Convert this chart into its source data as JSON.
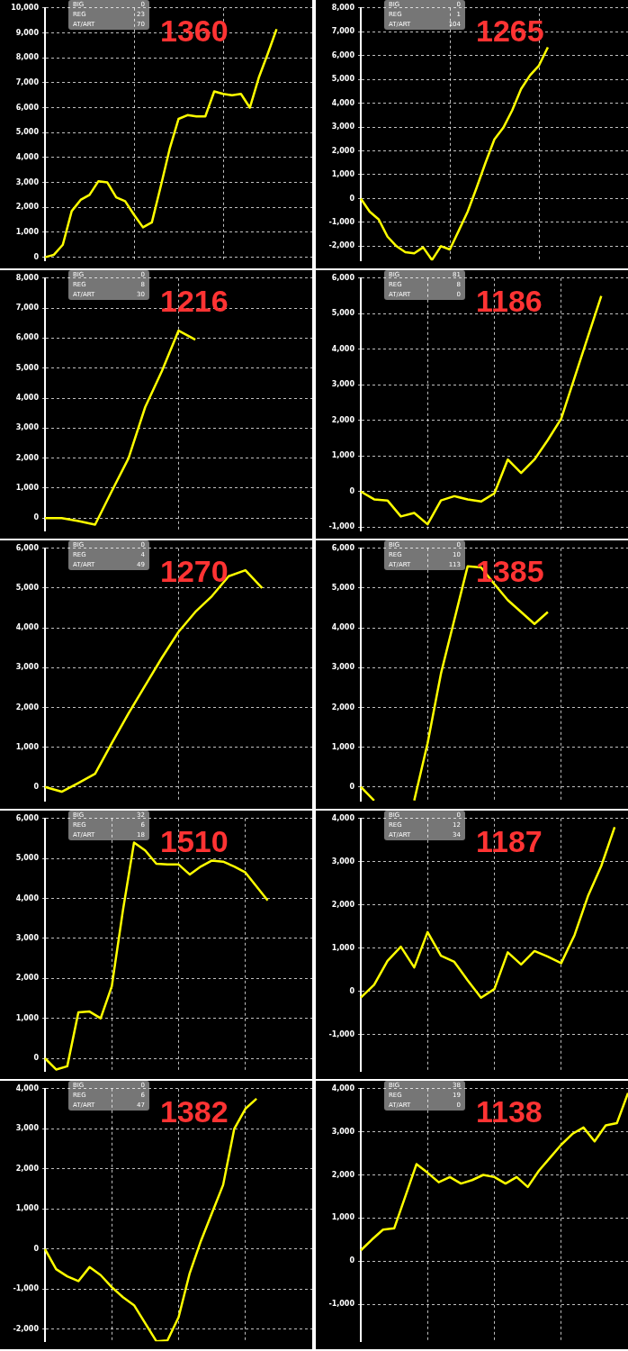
{
  "chart_data": [
    {
      "type": "line",
      "title": "1360",
      "annotations": [
        "BIG",
        "0",
        "REG",
        "23",
        "AT/ART",
        "70"
      ],
      "categories": [
        null,
        null,
        null,
        null,
        null,
        null,
        null,
        null,
        null,
        null,
        null,
        null,
        null,
        null,
        null,
        null,
        null,
        null,
        null,
        null,
        null,
        null,
        null,
        null,
        null,
        null,
        null,
        null,
        null,
        null,
        null
      ],
      "values": [
        0,
        100,
        500,
        1850,
        2300,
        2500,
        3050,
        3000,
        2400,
        2250,
        1700,
        1200,
        1400,
        2850,
        4350,
        5550,
        5700,
        5650,
        5650,
        6650,
        6550,
        6500,
        6550,
        6000,
        7200,
        8150,
        9150,
        null,
        null,
        null,
        null
      ],
      "color": "#ffff00",
      "ylim": [
        -130,
        10000
      ],
      "yticks": [
        {
          "value": 0,
          "label": "0"
        },
        {
          "value": 1000,
          "label": "1,000"
        },
        {
          "value": 2000,
          "label": "2,000"
        },
        {
          "value": 3000,
          "label": "3,000"
        },
        {
          "value": 4000,
          "label": "4,000"
        },
        {
          "value": 5000,
          "label": "5,000"
        },
        {
          "value": 6000,
          "label": "6,000"
        },
        {
          "value": 7000,
          "label": "7,000"
        },
        {
          "value": 8000,
          "label": "8,000"
        },
        {
          "value": 9000,
          "label": "9,000"
        },
        {
          "value": 10000,
          "label": "10,000"
        }
      ],
      "grid": true
    },
    {
      "type": "line",
      "title": "1265",
      "annotations": [
        "BIG",
        "0",
        "REG",
        "1",
        "AT/ART",
        "104"
      ],
      "categories": [
        null,
        null,
        null,
        null,
        null,
        null,
        null,
        null,
        null,
        null,
        null,
        null,
        null,
        null,
        null,
        null,
        null,
        null,
        null,
        null,
        null,
        null,
        null,
        null,
        null,
        null,
        null,
        null,
        null,
        null,
        null
      ],
      "values": [
        0,
        -550,
        -870,
        -1600,
        -2000,
        -2250,
        -2300,
        -2050,
        -2580,
        -2000,
        -2140,
        -1350,
        -550,
        450,
        1500,
        2480,
        2970,
        3700,
        4600,
        5170,
        5580,
        6350,
        null,
        null,
        null,
        null,
        null,
        null,
        null,
        null,
        null
      ],
      "color": "#ffff00",
      "ylim": [
        -2600,
        8000
      ],
      "yticks": [
        {
          "value": -2000,
          "label": "-2,000"
        },
        {
          "value": -1000,
          "label": "-1,000"
        },
        {
          "value": 0,
          "label": "0"
        },
        {
          "value": 1000,
          "label": "1,000"
        },
        {
          "value": 2000,
          "label": "2,000"
        },
        {
          "value": 3000,
          "label": "3,000"
        },
        {
          "value": 4000,
          "label": "4,000"
        },
        {
          "value": 5000,
          "label": "5,000"
        },
        {
          "value": 6000,
          "label": "6,000"
        },
        {
          "value": 7000,
          "label": "7,000"
        },
        {
          "value": 8000,
          "label": "8,000"
        }
      ],
      "grid": true
    },
    {
      "type": "line",
      "title": "1216",
      "annotations": [
        "BIG",
        "0",
        "REG",
        "8",
        "AT/ART",
        "30"
      ],
      "categories": [
        null,
        null,
        null,
        null,
        null,
        null,
        null,
        null,
        null,
        null,
        null,
        null,
        null,
        null,
        null,
        null,
        null
      ],
      "values": [
        0,
        0,
        -100,
        -220,
        900,
        1990,
        3700,
        4900,
        6250,
        5950,
        null,
        null,
        null,
        null,
        null,
        null,
        null
      ],
      "color": "#ffff00",
      "ylim": [
        -420,
        8000
      ],
      "yticks": [
        {
          "value": 0,
          "label": "0"
        },
        {
          "value": 1000,
          "label": "1,000"
        },
        {
          "value": 2000,
          "label": "2,000"
        },
        {
          "value": 3000,
          "label": "3,000"
        },
        {
          "value": 4000,
          "label": "4,000"
        },
        {
          "value": 5000,
          "label": "5,000"
        },
        {
          "value": 6000,
          "label": "6,000"
        },
        {
          "value": 7000,
          "label": "7,000"
        },
        {
          "value": 8000,
          "label": "8,000"
        }
      ],
      "grid": true
    },
    {
      "type": "line",
      "title": "1186",
      "annotations": [
        "BIG",
        "81",
        "REG",
        "8",
        "AT/ART",
        "0"
      ],
      "categories": [
        null,
        null,
        null,
        null,
        null,
        null,
        null,
        null,
        null,
        null,
        null,
        null,
        null,
        null,
        null,
        null,
        null,
        null,
        null,
        null,
        null
      ],
      "values": [
        0,
        -220,
        -250,
        -700,
        -600,
        -920,
        -250,
        -130,
        -220,
        -280,
        -50,
        900,
        520,
        900,
        1450,
        2050,
        3200,
        4350,
        5500,
        null,
        null
      ],
      "color": "#ffff00",
      "ylim": [
        -1100,
        6000
      ],
      "yticks": [
        {
          "value": -1000,
          "label": "-1,000"
        },
        {
          "value": 0,
          "label": "0"
        },
        {
          "value": 1000,
          "label": "1,000"
        },
        {
          "value": 2000,
          "label": "2,000"
        },
        {
          "value": 3000,
          "label": "3,000"
        },
        {
          "value": 4000,
          "label": "4,000"
        },
        {
          "value": 5000,
          "label": "5,000"
        },
        {
          "value": 6000,
          "label": "6,000"
        }
      ],
      "grid": true
    },
    {
      "type": "line",
      "title": "1270",
      "annotations": [
        "BIG",
        "0",
        "REG",
        "4",
        "AT/ART",
        "49"
      ],
      "categories": [
        null,
        null,
        null,
        null,
        null,
        null,
        null,
        null,
        null,
        null,
        null,
        null,
        null,
        null,
        null,
        null,
        null
      ],
      "values": [
        0,
        -120,
        100,
        330,
        1100,
        1850,
        2550,
        3250,
        3900,
        4400,
        4800,
        5300,
        5450,
        5000,
        null,
        null,
        null
      ],
      "color": "#ffff00",
      "ylim": [
        -350,
        6000
      ],
      "yticks": [
        {
          "value": 0,
          "label": "0"
        },
        {
          "value": 1000,
          "label": "1,000"
        },
        {
          "value": 2000,
          "label": "2,000"
        },
        {
          "value": 3000,
          "label": "3,000"
        },
        {
          "value": 4000,
          "label": "4,000"
        },
        {
          "value": 5000,
          "label": "5,000"
        },
        {
          "value": 6000,
          "label": "6,000"
        }
      ],
      "grid": true
    },
    {
      "type": "line",
      "title": "1385",
      "annotations": [
        "BIG",
        "0",
        "REG",
        "10",
        "AT/ART",
        "113"
      ],
      "categories": [
        null,
        null,
        null,
        null,
        null,
        null,
        null,
        null,
        null,
        null,
        null,
        null,
        null,
        null,
        null,
        null,
        null,
        null,
        null,
        null,
        null
      ],
      "values": [
        0,
        -340,
        null,
        null,
        -340,
        1100,
        2850,
        4200,
        5550,
        5520,
        5100,
        4700,
        4400,
        4100,
        4400,
        null,
        null,
        null,
        null,
        null,
        null
      ],
      "color": "#ffff00",
      "ylim": [
        -350,
        6000
      ],
      "yticks": [
        {
          "value": 0,
          "label": "0"
        },
        {
          "value": 1000,
          "label": "1,000"
        },
        {
          "value": 2000,
          "label": "2,000"
        },
        {
          "value": 3000,
          "label": "3,000"
        },
        {
          "value": 4000,
          "label": "4,000"
        },
        {
          "value": 5000,
          "label": "5,000"
        },
        {
          "value": 6000,
          "label": "6,000"
        }
      ],
      "grid": true
    },
    {
      "type": "line",
      "title": "1510",
      "annotations": [
        "BIG",
        "32",
        "REG",
        "6",
        "AT/ART",
        "18"
      ],
      "categories": [
        null,
        null,
        null,
        null,
        null,
        null,
        null,
        null,
        null,
        null,
        null,
        null,
        null,
        null,
        null,
        null,
        null,
        null,
        null,
        null,
        null,
        null,
        null,
        null,
        null
      ],
      "values": [
        0,
        -280,
        -200,
        1150,
        1170,
        1000,
        1800,
        3700,
        5400,
        5200,
        4870,
        4850,
        4850,
        4600,
        4800,
        4950,
        4920,
        4800,
        4650,
        4300,
        3950,
        null,
        null,
        null,
        null
      ],
      "color": "#ffff00",
      "ylim": [
        -320,
        6000
      ],
      "yticks": [
        {
          "value": 0,
          "label": "0"
        },
        {
          "value": 1000,
          "label": "1,000"
        },
        {
          "value": 2000,
          "label": "2,000"
        },
        {
          "value": 3000,
          "label": "3,000"
        },
        {
          "value": 4000,
          "label": "4,000"
        },
        {
          "value": 5000,
          "label": "5,000"
        },
        {
          "value": 6000,
          "label": "6,000"
        }
      ],
      "grid": true
    },
    {
      "type": "line",
      "title": "1187",
      "annotations": [
        "BIG",
        "0",
        "REG",
        "12",
        "AT/ART",
        "34"
      ],
      "categories": [
        null,
        null,
        null,
        null,
        null,
        null,
        null,
        null,
        null,
        null,
        null,
        null,
        null,
        null,
        null,
        null,
        null,
        null,
        null,
        null,
        null
      ],
      "values": [
        -150,
        150,
        700,
        1030,
        550,
        1370,
        820,
        680,
        250,
        -150,
        50,
        900,
        620,
        930,
        800,
        650,
        1300,
        2200,
        2900,
        3800,
        null
      ],
      "color": "#ffff00",
      "ylim": [
        -1850,
        4000
      ],
      "yticks": [
        {
          "value": -1000,
          "label": "-1,000"
        },
        {
          "value": 0,
          "label": "0"
        },
        {
          "value": 1000,
          "label": "1,000"
        },
        {
          "value": 2000,
          "label": "2,000"
        },
        {
          "value": 3000,
          "label": "3,000"
        },
        {
          "value": 4000,
          "label": "4,000"
        }
      ],
      "grid": true
    },
    {
      "type": "line",
      "title": "1382",
      "annotations": [
        "BIG",
        "0",
        "REG",
        "6",
        "AT/ART",
        "47"
      ],
      "categories": [
        null,
        null,
        null,
        null,
        null,
        null,
        null,
        null,
        null,
        null,
        null,
        null,
        null,
        null,
        null,
        null,
        null,
        null,
        null,
        null,
        null,
        null,
        null,
        null,
        null
      ],
      "values": [
        0,
        -500,
        -680,
        -800,
        -450,
        -650,
        -950,
        -1200,
        -1400,
        -1850,
        -2300,
        -2280,
        -1700,
        -600,
        200,
        900,
        1600,
        3000,
        3500,
        3750,
        null,
        null,
        null,
        null,
        null
      ],
      "color": "#ffff00",
      "ylim": [
        -2300,
        4000
      ],
      "yticks": [
        {
          "value": -2000,
          "label": "-2,000"
        },
        {
          "value": -1000,
          "label": "-1,000"
        },
        {
          "value": 0,
          "label": "0"
        },
        {
          "value": 1000,
          "label": "1,000"
        },
        {
          "value": 2000,
          "label": "2,000"
        },
        {
          "value": 3000,
          "label": "3,000"
        },
        {
          "value": 4000,
          "label": "4,000"
        }
      ],
      "grid": true
    },
    {
      "type": "line",
      "title": "1138",
      "annotations": [
        "BIG",
        "38",
        "REG",
        "19",
        "AT/ART",
        "0"
      ],
      "categories": [
        null,
        null,
        null,
        null,
        null,
        null,
        null,
        null,
        null,
        null,
        null,
        null,
        null,
        null,
        null,
        null,
        null,
        null,
        null,
        null,
        null,
        null,
        null,
        null,
        null
      ],
      "values": [
        250,
        500,
        730,
        760,
        1500,
        2250,
        2050,
        1830,
        1950,
        1800,
        1880,
        2000,
        1950,
        1800,
        1950,
        1720,
        2100,
        2400,
        2700,
        2950,
        3100,
        2780,
        3150,
        3200,
        3900
      ],
      "color": "#ffff00",
      "ylim": [
        -1860,
        4000
      ],
      "yticks": [
        {
          "value": -1000,
          "label": "-1,000"
        },
        {
          "value": 0,
          "label": "0"
        },
        {
          "value": 1000,
          "label": "1,000"
        },
        {
          "value": 2000,
          "label": "2,000"
        },
        {
          "value": 3000,
          "label": "3,000"
        },
        {
          "value": 4000,
          "label": "4,000"
        }
      ],
      "grid": true
    }
  ]
}
